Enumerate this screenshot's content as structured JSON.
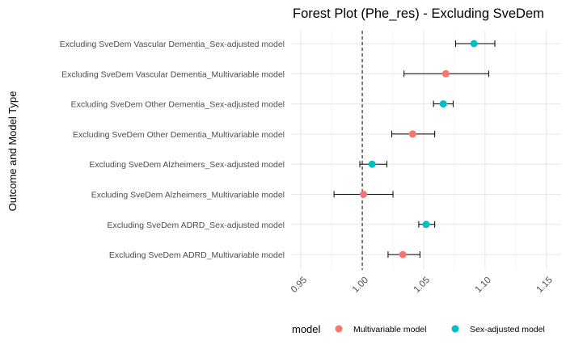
{
  "chart_data": {
    "type": "forest",
    "title": "Forest Plot (Phe_res) - Excluding SveDem",
    "xlabel": "",
    "ylabel": "Outcome and Model Type",
    "xlim": [
      0.942,
      1.162
    ],
    "xticks": [
      "0.95",
      "1.00",
      "1.05",
      "1.10",
      "1.15"
    ],
    "xtick_values": [
      0.95,
      1.0,
      1.05,
      1.1,
      1.15
    ],
    "reference_line": 1.0,
    "grid": true,
    "legend": {
      "title": "model",
      "position": "bottom",
      "entries": [
        {
          "name": "Multivariable model",
          "color": "#F8766D"
        },
        {
          "name": "Sex-adjusted model",
          "color": "#00BFC4"
        }
      ]
    },
    "rows": [
      {
        "label": "Excluding SveDem Vascular Dementia_Sex-adjusted model",
        "model": "Sex-adjusted model",
        "estimate": 1.091,
        "lower": 1.076,
        "upper": 1.108
      },
      {
        "label": "Excluding SveDem Vascular Dementia_Multivariable model",
        "model": "Multivariable model",
        "estimate": 1.068,
        "lower": 1.034,
        "upper": 1.103
      },
      {
        "label": "Excluding SveDem Other Dementia_Sex-adjusted model",
        "model": "Sex-adjusted model",
        "estimate": 1.066,
        "lower": 1.058,
        "upper": 1.074
      },
      {
        "label": "Excluding SveDem Other Dementia_Multivariable model",
        "model": "Multivariable model",
        "estimate": 1.041,
        "lower": 1.024,
        "upper": 1.059
      },
      {
        "label": "Excluding SveDem Alzheimers_Sex-adjusted model",
        "model": "Sex-adjusted model",
        "estimate": 1.008,
        "lower": 0.998,
        "upper": 1.02
      },
      {
        "label": "Excluding SveDem Alzheimers_Multivariable model",
        "model": "Multivariable model",
        "estimate": 1.001,
        "lower": 0.977,
        "upper": 1.025
      },
      {
        "label": "Excluding SveDem ADRD_Sex-adjusted model",
        "model": "Sex-adjusted model",
        "estimate": 1.052,
        "lower": 1.046,
        "upper": 1.059
      },
      {
        "label": "Excluding SveDem ADRD_Multivariable model",
        "model": "Multivariable model",
        "estimate": 1.033,
        "lower": 1.021,
        "upper": 1.047
      }
    ]
  }
}
